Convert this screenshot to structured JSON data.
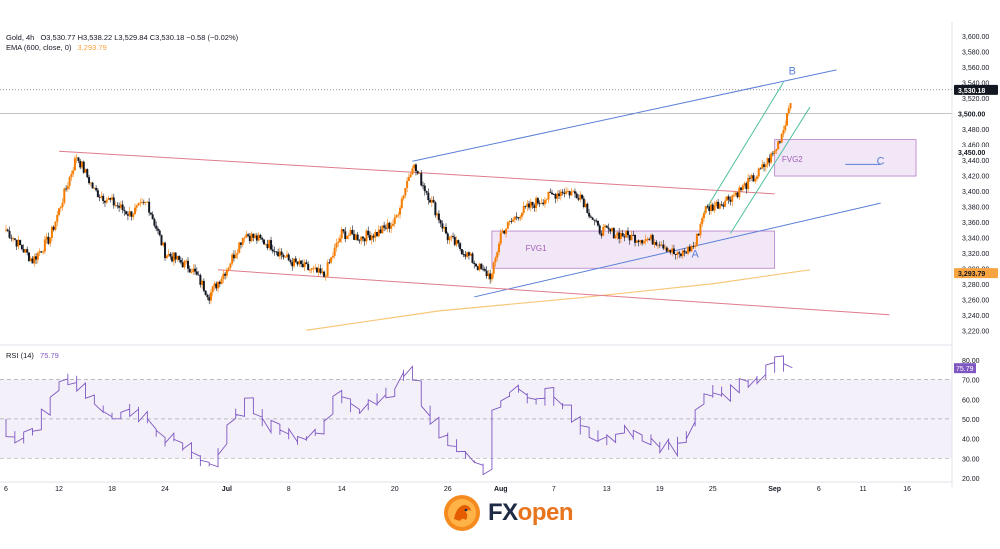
{
  "header": {
    "symbol": "Gold, 4h",
    "ohlc": "O3,530.77  H3,538.22  L3,529.84  C3,530.18  −0.58 (−0.02%)",
    "ema_label": "EMA (600, close, 0)",
    "ema_value": "3,293.79"
  },
  "rsi_header": {
    "label": "RSI (14)",
    "value": "75.79"
  },
  "brand": {
    "text_fx": "FX",
    "text_open": "open"
  },
  "colors": {
    "up": "#f57c00",
    "down": "#131722",
    "ema": "#f7c87a",
    "rsi": "#7e57c2",
    "channel_blue": "#5b7fd6",
    "channel_red": "#e07b8c",
    "fvg_fill": "#e8d4f0",
    "fvg_stroke": "#b57cc8"
  },
  "chart_data": [
    {
      "type": "candlestick",
      "title": "Gold, 4h",
      "y_axis_ticks": [
        "3,600.00",
        "3,580.00",
        "3,560.00",
        "3,540.00",
        "3,520.00",
        "3,500.00",
        "3,480.00",
        "3,460.00",
        "3,440.00",
        "3,420.00",
        "3,400.00",
        "3,380.00",
        "3,360.00",
        "3,340.00",
        "3,320.00",
        "3,300.00",
        "3,280.00",
        "3,260.00",
        "3,240.00",
        "3,220.00"
      ],
      "y_axis_range": [
        3210,
        3610
      ],
      "x_axis_ticks": [
        "6",
        "12",
        "18",
        "24",
        "Jul",
        "8",
        "14",
        "20",
        "26",
        "Aug",
        "7",
        "13",
        "19",
        "25",
        "Sep",
        "6",
        "11",
        "16"
      ],
      "x_axis_range": [
        "2025-06-06",
        "2025-09-17"
      ],
      "price_label": "3,530.18",
      "level_label_3450": "3,450.00",
      "level_label_3500": "3,500.00",
      "ema_label": "3,293.79",
      "close_path": [
        [
          "2025-06-06",
          3350
        ],
        [
          "2025-06-09",
          3310
        ],
        [
          "2025-06-11",
          3340
        ],
        [
          "2025-06-13",
          3410
        ],
        [
          "2025-06-14",
          3445
        ],
        [
          "2025-06-16",
          3400
        ],
        [
          "2025-06-18",
          3385
        ],
        [
          "2025-06-20",
          3370
        ],
        [
          "2025-06-22",
          3385
        ],
        [
          "2025-06-24",
          3320
        ],
        [
          "2025-06-27",
          3300
        ],
        [
          "2025-06-29",
          3265
        ],
        [
          "2025-07-01",
          3300
        ],
        [
          "2025-07-03",
          3345
        ],
        [
          "2025-07-06",
          3330
        ],
        [
          "2025-07-08",
          3310
        ],
        [
          "2025-07-10",
          3300
        ],
        [
          "2025-07-12",
          3290
        ],
        [
          "2025-07-14",
          3345
        ],
        [
          "2025-07-16",
          3340
        ],
        [
          "2025-07-18",
          3345
        ],
        [
          "2025-07-20",
          3360
        ],
        [
          "2025-07-22",
          3435
        ],
        [
          "2025-07-24",
          3390
        ],
        [
          "2025-07-26",
          3340
        ],
        [
          "2025-07-28",
          3320
        ],
        [
          "2025-07-30",
          3295
        ],
        [
          "2025-07-31",
          3290
        ],
        [
          "2025-08-01",
          3345
        ],
        [
          "2025-08-03",
          3370
        ],
        [
          "2025-08-05",
          3385
        ],
        [
          "2025-08-08",
          3400
        ],
        [
          "2025-08-10",
          3395
        ],
        [
          "2025-08-12",
          3350
        ],
        [
          "2025-08-14",
          3345
        ],
        [
          "2025-08-16",
          3340
        ],
        [
          "2025-08-19",
          3335
        ],
        [
          "2025-08-21",
          3315
        ],
        [
          "2025-08-23",
          3330
        ],
        [
          "2025-08-24",
          3375
        ],
        [
          "2025-08-26",
          3385
        ],
        [
          "2025-08-28",
          3400
        ],
        [
          "2025-08-30",
          3420
        ],
        [
          "2025-09-01",
          3450
        ],
        [
          "2025-09-02",
          3480
        ],
        [
          "2025-09-03",
          3530
        ]
      ],
      "ema": [
        [
          "2025-07-10",
          3220
        ],
        [
          "2025-07-25",
          3245
        ],
        [
          "2025-08-10",
          3262
        ],
        [
          "2025-08-25",
          3280
        ],
        [
          "2025-09-05",
          3298
        ]
      ],
      "annotations": [
        {
          "text": "A",
          "x": "2025-08-23",
          "y": 3314
        },
        {
          "text": "B",
          "x": "2025-09-03",
          "y": 3550
        },
        {
          "text": "C",
          "x": "2025-09-13",
          "y": 3434
        },
        {
          "text": "FVG1",
          "x": "2025-08-05",
          "y": 3322
        },
        {
          "text": "FVG2",
          "x": "2025-09-03",
          "y": 3437
        }
      ],
      "zones": [
        {
          "name": "FVG1",
          "x0": "2025-07-31",
          "x1": "2025-09-01",
          "y0": 3300,
          "y1": 3348
        },
        {
          "name": "FVG2",
          "x0": "2025-09-01",
          "x1": "2025-09-17",
          "y0": 3419,
          "y1": 3466
        }
      ],
      "trendlines": [
        {
          "color": "blue",
          "from": [
            "2025-07-22",
            3438
          ],
          "to": [
            "2025-09-08",
            3556
          ]
        },
        {
          "color": "blue",
          "from": [
            "2025-07-29",
            3263
          ],
          "to": [
            "2025-09-13",
            3384
          ]
        },
        {
          "color": "red",
          "from": [
            "2025-06-12",
            3451
          ],
          "to": [
            "2025-09-01",
            3396
          ]
        },
        {
          "color": "red",
          "from": [
            "2025-06-30",
            3298
          ],
          "to": [
            "2025-09-14",
            3240
          ]
        },
        {
          "color": "teal",
          "from": [
            "2025-08-24",
            3372
          ],
          "to": [
            "2025-09-02",
            3540
          ]
        },
        {
          "color": "teal",
          "from": [
            "2025-08-27",
            3345
          ],
          "to": [
            "2025-09-05",
            3508
          ]
        },
        {
          "color": "blue",
          "from": [
            "2025-09-09",
            3434
          ],
          "to": [
            "2025-09-13",
            3434
          ]
        }
      ]
    },
    {
      "type": "line",
      "title": "RSI (14)",
      "y_axis_ticks": [
        "80.00",
        "70.00",
        "60.00",
        "50.00",
        "40.00",
        "30.00",
        "20.00"
      ],
      "y_axis_range": [
        18,
        84
      ],
      "levels": [
        70,
        50,
        30
      ],
      "value_label": "75.79",
      "series": [
        [
          "2025-06-06",
          48
        ],
        [
          "2025-06-08",
          38
        ],
        [
          "2025-06-10",
          45
        ],
        [
          "2025-06-12",
          65
        ],
        [
          "2025-06-14",
          72
        ],
        [
          "2025-06-16",
          60
        ],
        [
          "2025-06-18",
          50
        ],
        [
          "2025-06-20",
          55
        ],
        [
          "2025-06-22",
          52
        ],
        [
          "2025-06-24",
          40
        ],
        [
          "2025-06-26",
          38
        ],
        [
          "2025-06-28",
          30
        ],
        [
          "2025-06-30",
          25
        ],
        [
          "2025-07-02",
          52
        ],
        [
          "2025-07-04",
          58
        ],
        [
          "2025-07-06",
          47
        ],
        [
          "2025-07-08",
          44
        ],
        [
          "2025-07-10",
          38
        ],
        [
          "2025-07-12",
          45
        ],
        [
          "2025-07-14",
          62
        ],
        [
          "2025-07-16",
          55
        ],
        [
          "2025-07-18",
          58
        ],
        [
          "2025-07-20",
          64
        ],
        [
          "2025-07-22",
          76
        ],
        [
          "2025-07-24",
          55
        ],
        [
          "2025-07-26",
          40
        ],
        [
          "2025-07-28",
          35
        ],
        [
          "2025-07-30",
          27
        ],
        [
          "2025-07-31",
          22
        ],
        [
          "2025-08-01",
          60
        ],
        [
          "2025-08-03",
          64
        ],
        [
          "2025-08-05",
          58
        ],
        [
          "2025-08-07",
          62
        ],
        [
          "2025-08-09",
          55
        ],
        [
          "2025-08-11",
          43
        ],
        [
          "2025-08-13",
          40
        ],
        [
          "2025-08-15",
          44
        ],
        [
          "2025-08-17",
          42
        ],
        [
          "2025-08-19",
          38
        ],
        [
          "2025-08-21",
          35
        ],
        [
          "2025-08-23",
          45
        ],
        [
          "2025-08-25",
          65
        ],
        [
          "2025-08-27",
          62
        ],
        [
          "2025-08-29",
          68
        ],
        [
          "2025-08-31",
          72
        ],
        [
          "2025-09-01",
          75
        ],
        [
          "2025-09-02",
          80
        ],
        [
          "2025-09-03",
          76
        ]
      ]
    }
  ]
}
